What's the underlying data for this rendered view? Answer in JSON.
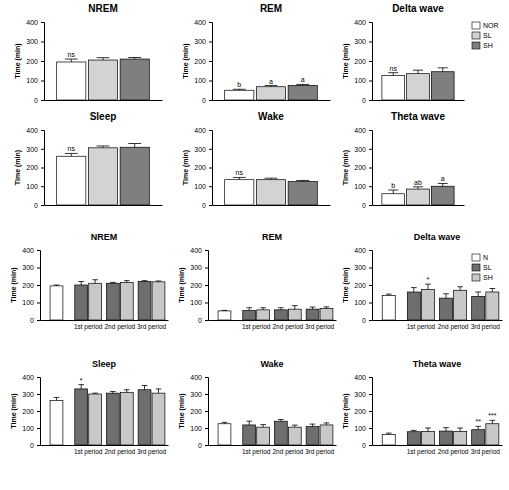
{
  "chart_data": [
    {
      "type": "bar",
      "title": "NREM",
      "y_label": "Time (min)",
      "categories": [
        null
      ],
      "tick_labels": "y",
      "ylim": [
        0,
        400
      ],
      "yticks": [
        0,
        100,
        200,
        300,
        400
      ],
      "series": [
        {
          "color": "#ffffff",
          "values": [
            195
          ],
          "errors": [
            15
          ],
          "annotations": [
            "ns"
          ]
        },
        {
          "color": "#d3d3d3",
          "values": [
            205
          ],
          "errors": [
            12
          ]
        },
        {
          "color": "#7f7f7f",
          "values": [
            210
          ],
          "errors": [
            8
          ]
        }
      ]
    },
    {
      "type": "bar",
      "title": "REM",
      "y_label": "Time (min)",
      "categories": [
        null
      ],
      "tick_labels": "y",
      "ylim": [
        0,
        400
      ],
      "yticks": [
        0,
        100,
        200,
        300,
        400
      ],
      "series": [
        {
          "color": "#ffffff",
          "values": [
            50
          ],
          "errors": [
            5
          ],
          "annotations": [
            "b"
          ]
        },
        {
          "color": "#d3d3d3",
          "values": [
            68
          ],
          "errors": [
            6
          ],
          "annotations": [
            "a"
          ]
        },
        {
          "color": "#7f7f7f",
          "values": [
            75
          ],
          "errors": [
            5
          ],
          "annotations": [
            "a"
          ]
        }
      ]
    },
    {
      "type": "bar",
      "title": "Delta wave",
      "y_label": "Time (min)",
      "categories": [
        null
      ],
      "tick_labels": "y",
      "ylim": [
        0,
        400
      ],
      "yticks": [
        0,
        100,
        200,
        300,
        400
      ],
      "legend": "right",
      "series": [
        {
          "name": "NOR",
          "color": "#ffffff",
          "values": [
            125
          ],
          "errors": [
            15
          ],
          "annotations": [
            "ns"
          ]
        },
        {
          "name": "SL",
          "color": "#d3d3d3",
          "values": [
            135
          ],
          "errors": [
            18
          ]
        },
        {
          "name": "SH",
          "color": "#7f7f7f",
          "values": [
            145
          ],
          "errors": [
            20
          ]
        }
      ]
    },
    {
      "type": "bar",
      "title": "Sleep",
      "y_label": "Time (min)",
      "categories": [
        null
      ],
      "tick_labels": "y",
      "ylim": [
        0,
        400
      ],
      "yticks": [
        0,
        100,
        200,
        300,
        400
      ],
      "series": [
        {
          "color": "#ffffff",
          "values": [
            260
          ],
          "errors": [
            15
          ],
          "annotations": [
            "ns"
          ]
        },
        {
          "color": "#d3d3d3",
          "values": [
            305
          ],
          "errors": [
            10
          ]
        },
        {
          "color": "#7f7f7f",
          "values": [
            308
          ],
          "errors": [
            20
          ]
        }
      ]
    },
    {
      "type": "bar",
      "title": "Wake",
      "y_label": "Time (min)",
      "categories": [
        null
      ],
      "tick_labels": "y",
      "ylim": [
        0,
        400
      ],
      "yticks": [
        0,
        100,
        200,
        300,
        400
      ],
      "series": [
        {
          "color": "#ffffff",
          "values": [
            135
          ],
          "errors": [
            12
          ],
          "annotations": [
            "ns"
          ]
        },
        {
          "color": "#d3d3d3",
          "values": [
            135
          ],
          "errors": [
            8
          ]
        },
        {
          "color": "#7f7f7f",
          "values": [
            125
          ],
          "errors": [
            6
          ]
        }
      ]
    },
    {
      "type": "bar",
      "title": "Theta wave",
      "y_label": "Time (min)",
      "categories": [
        null
      ],
      "tick_labels": "y",
      "ylim": [
        0,
        400
      ],
      "yticks": [
        0,
        100,
        200,
        300,
        400
      ],
      "series": [
        {
          "color": "#ffffff",
          "values": [
            60
          ],
          "errors": [
            20
          ],
          "annotations": [
            "b"
          ]
        },
        {
          "color": "#d3d3d3",
          "values": [
            85
          ],
          "errors": [
            12
          ],
          "annotations": [
            "ab"
          ]
        },
        {
          "color": "#7f7f7f",
          "values": [
            100
          ],
          "errors": [
            15
          ],
          "annotations": [
            "a"
          ]
        }
      ]
    },
    {
      "type": "bar",
      "title": "NREM",
      "y_label": "Time (min)",
      "categories": [
        null,
        "1st period",
        "2nd period",
        "3rd period"
      ],
      "ylim": [
        0,
        400
      ],
      "yticks": [
        0,
        100,
        200,
        300,
        400
      ],
      "series": [
        {
          "color": "#ffffff",
          "values": [
            195,
            null,
            null,
            null
          ],
          "errors": [
            5,
            null,
            null,
            null
          ]
        },
        {
          "color": "#6e6e6e",
          "values": [
            null,
            200,
            210,
            220
          ],
          "errors": [
            null,
            20,
            5,
            5
          ]
        },
        {
          "color": "#c8c8c8",
          "values": [
            null,
            210,
            215,
            218
          ],
          "errors": [
            null,
            20,
            10,
            5
          ]
        }
      ]
    },
    {
      "type": "bar",
      "title": "REM",
      "y_label": "Time (min)",
      "categories": [
        null,
        "1st period",
        "2nd period",
        "3rd period"
      ],
      "ylim": [
        0,
        400
      ],
      "yticks": [
        0,
        100,
        200,
        300,
        400
      ],
      "series": [
        {
          "color": "#ffffff",
          "values": [
            52,
            null,
            null,
            null
          ],
          "errors": [
            3,
            null,
            null,
            null
          ]
        },
        {
          "color": "#6e6e6e",
          "values": [
            null,
            55,
            58,
            62
          ],
          "errors": [
            null,
            15,
            12,
            12
          ]
        },
        {
          "color": "#c8c8c8",
          "values": [
            null,
            58,
            62,
            65
          ],
          "errors": [
            null,
            12,
            20,
            10
          ]
        }
      ]
    },
    {
      "type": "bar",
      "title": "Delta wave",
      "y_label": "Time (min)",
      "categories": [
        null,
        "1st period",
        "2nd period",
        "3rd period"
      ],
      "ylim": [
        0,
        400
      ],
      "yticks": [
        0,
        100,
        200,
        300,
        400
      ],
      "legend": "upper right",
      "series": [
        {
          "name": "N",
          "color": "#ffffff",
          "values": [
            140,
            null,
            null,
            null
          ],
          "errors": [
            8,
            null,
            null,
            null
          ]
        },
        {
          "name": "SL",
          "color": "#6e6e6e",
          "values": [
            null,
            160,
            125,
            135
          ],
          "errors": [
            null,
            25,
            25,
            25
          ]
        },
        {
          "name": "SH",
          "color": "#c8c8c8",
          "values": [
            null,
            175,
            170,
            160
          ],
          "errors": [
            null,
            30,
            20,
            20
          ],
          "annotations": [
            null,
            "*",
            null,
            null
          ]
        }
      ]
    },
    {
      "type": "bar",
      "title": "Sleep",
      "y_label": "Time (min)",
      "categories": [
        null,
        "1st period",
        "2nd period",
        "3rd period"
      ],
      "ylim": [
        0,
        400
      ],
      "yticks": [
        0,
        100,
        200,
        300,
        400
      ],
      "series": [
        {
          "color": "#ffffff",
          "values": [
            262,
            null,
            null,
            null
          ],
          "errors": [
            18,
            null,
            null,
            null
          ]
        },
        {
          "color": "#6e6e6e",
          "values": [
            null,
            330,
            305,
            325
          ],
          "errors": [
            null,
            25,
            10,
            25
          ],
          "annotations": [
            null,
            "*",
            null,
            null
          ]
        },
        {
          "color": "#c8c8c8",
          "values": [
            null,
            300,
            310,
            305
          ],
          "errors": [
            null,
            5,
            15,
            25
          ]
        }
      ]
    },
    {
      "type": "bar",
      "title": "Wake",
      "y_label": "Time (min)",
      "categories": [
        null,
        "1st period",
        "2nd period",
        "3rd period"
      ],
      "ylim": [
        0,
        400
      ],
      "yticks": [
        0,
        100,
        200,
        300,
        400
      ],
      "series": [
        {
          "color": "#ffffff",
          "values": [
            125,
            null,
            null,
            null
          ],
          "errors": [
            8,
            null,
            null,
            null
          ]
        },
        {
          "color": "#6e6e6e",
          "values": [
            null,
            118,
            140,
            108
          ],
          "errors": [
            null,
            22,
            10,
            15
          ]
        },
        {
          "color": "#c8c8c8",
          "values": [
            null,
            105,
            105,
            118
          ],
          "errors": [
            null,
            15,
            12,
            12
          ]
        }
      ]
    },
    {
      "type": "bar",
      "title": "Theta wave",
      "y_label": "Time (min)",
      "categories": [
        null,
        "1st period",
        "2nd period",
        "3rd period"
      ],
      "ylim": [
        0,
        400
      ],
      "yticks": [
        0,
        100,
        200,
        300,
        400
      ],
      "series": [
        {
          "color": "#ffffff",
          "values": [
            62,
            null,
            null,
            null
          ],
          "errors": [
            8,
            null,
            null,
            null
          ]
        },
        {
          "color": "#6e6e6e",
          "values": [
            null,
            78,
            82,
            90
          ],
          "errors": [
            null,
            8,
            20,
            20
          ],
          "annotations": [
            null,
            null,
            null,
            "**"
          ]
        },
        {
          "color": "#c8c8c8",
          "values": [
            null,
            80,
            80,
            125
          ],
          "errors": [
            null,
            20,
            20,
            20
          ],
          "annotations": [
            null,
            null,
            null,
            "***"
          ]
        }
      ]
    }
  ]
}
